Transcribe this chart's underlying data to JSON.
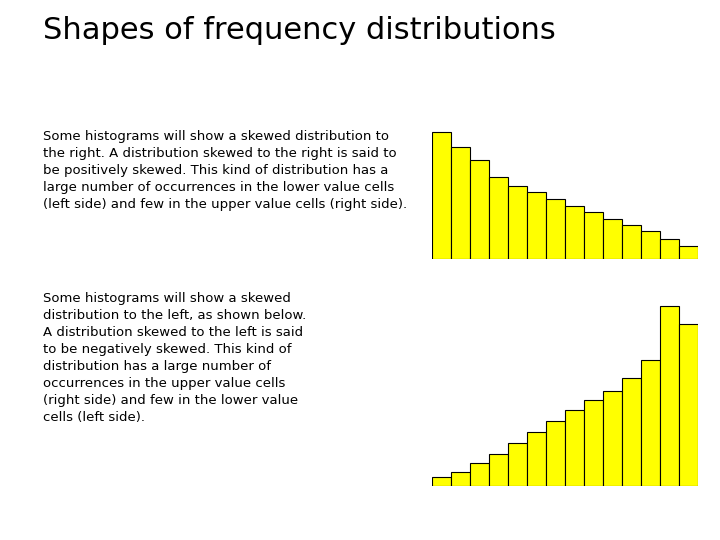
{
  "title": "Shapes of frequency distributions",
  "title_fontsize": 22,
  "background_color": "#ffffff",
  "bar_color": "#ffff00",
  "bar_edge_color": "#000000",
  "text1": "Some histograms will show a skewed distribution to\nthe right. A distribution skewed to the right is said to\nbe positively skewed. This kind of distribution has a\nlarge number of occurrences in the lower value cells\n(left side) and few in the upper value cells (right side).",
  "text2": "Some histograms will show a skewed\ndistribution to the left, as shown below.\nA distribution skewed to the left is said\nto be negatively skewed. This kind of\ndistribution has a large number of\noccurrences in the upper value cells\n(right side) and few in the lower value\ncells (left side).",
  "text_fontsize": 9.5,
  "right_skewed_values": [
    10,
    8.8,
    7.8,
    6.5,
    5.8,
    5.3,
    4.7,
    4.2,
    3.7,
    3.2,
    2.7,
    2.2,
    1.6,
    1.0
  ],
  "left_skewed_values": [
    0.5,
    0.8,
    1.3,
    1.8,
    2.4,
    3.0,
    3.6,
    4.2,
    4.8,
    5.3,
    6.0,
    7.0,
    10.0,
    9.0
  ]
}
